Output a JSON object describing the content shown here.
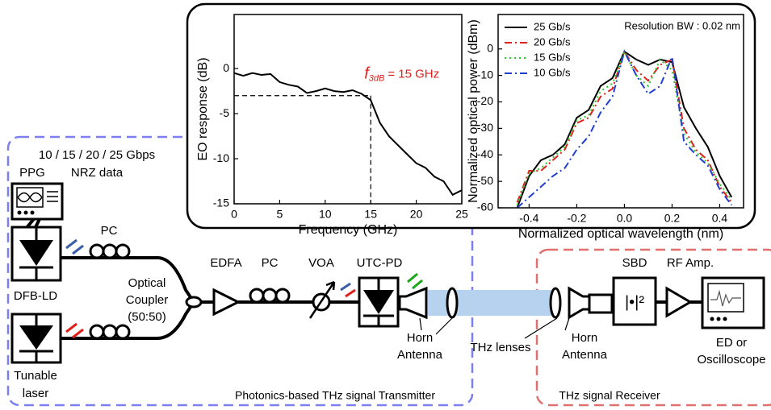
{
  "chart_data": [
    {
      "type": "line",
      "x_label": "Frequency (GHz)",
      "y_label": "EO response (dB)",
      "x": [
        0,
        1,
        2,
        3,
        4,
        5,
        6,
        7,
        8,
        9,
        10,
        11,
        12,
        13,
        14,
        15,
        16,
        17,
        18,
        19,
        20,
        21,
        22,
        23,
        24,
        25
      ],
      "values": [
        -0.5,
        -0.8,
        -0.5,
        -0.7,
        -0.6,
        -1.5,
        -1.8,
        -2,
        -2.7,
        -2.5,
        -2.2,
        -2.5,
        -2.6,
        -2.4,
        -2.8,
        -3.5,
        -6,
        -7.5,
        -8.5,
        -9.5,
        -10.5,
        -11,
        -12,
        -12.5,
        -14,
        -13.5
      ],
      "color": "#000000",
      "xlim": [
        0,
        25
      ],
      "xticks": [
        0,
        5,
        10,
        15,
        20,
        25
      ],
      "ylim": [
        -15,
        6
      ],
      "yticks": [
        0,
        -5,
        -10,
        -15
      ],
      "annotation": {
        "symbol": "f",
        "subscript": "3dB",
        "text": "= 15 GHz",
        "color": "#e0201b"
      },
      "reference_lines": {
        "x": 15,
        "y": -3
      }
    },
    {
      "type": "line",
      "x_label": "Normalized optical wavelength (nm)",
      "y_label": "Normalized optical power (dBm)",
      "x": [
        -0.45,
        -0.4,
        -0.35,
        -0.3,
        -0.25,
        -0.2,
        -0.15,
        -0.1,
        -0.05,
        0,
        0.05,
        0.1,
        0.15,
        0.2,
        0.25,
        0.3,
        0.35,
        0.4,
        0.45
      ],
      "series": [
        {
          "name": "25 Gb/s",
          "color": "#000000",
          "dash": "solid",
          "values": [
            -60,
            -48,
            -42,
            -40,
            -36,
            -26,
            -23,
            -14,
            -11,
            -1,
            -4,
            -6,
            -4,
            -5,
            -22,
            -30,
            -37,
            -48,
            -56
          ]
        },
        {
          "name": "20 Gb/s",
          "color": "#e0201b",
          "dash": "dashdot",
          "values": [
            -58,
            -46,
            -46,
            -42,
            -38,
            -28,
            -26,
            -18,
            -15,
            -1,
            -8,
            -12,
            -6,
            -4,
            -30,
            -38,
            -42,
            -52,
            -58
          ]
        },
        {
          "name": "15 Gb/s",
          "color": "#22cc22",
          "dash": "dot",
          "values": [
            -59,
            -47,
            -45,
            -41,
            -37,
            -27,
            -25,
            -16,
            -13,
            -1,
            -10,
            -14,
            -4,
            -8,
            -32,
            -39,
            -43,
            -51,
            -57
          ]
        },
        {
          "name": "10 Gb/s",
          "color": "#1f3fd0",
          "dash": "dashdot",
          "values": [
            -60,
            -56,
            -52,
            -48,
            -45,
            -38,
            -33,
            -24,
            -18,
            -1,
            -10,
            -17,
            -14,
            -3,
            -35,
            -40,
            -44,
            -53,
            -59
          ]
        }
      ],
      "legend": "upper left",
      "annotation_text": "Resolution BW : 0.02 nm",
      "xlim": [
        -0.53,
        0.5
      ],
      "xticks": [
        -0.4,
        -0.2,
        {
          "value": 0,
          "label": "0.0"
        },
        0.2,
        0.4
      ],
      "ylim": [
        -60,
        13
      ],
      "yticks": [
        0,
        -10,
        -20,
        -30,
        -40,
        -50,
        -60
      ]
    }
  ],
  "diagram": {
    "data_rate": "10 / 15 / 20 / 25 Gbps",
    "data_format": "NRZ data",
    "ppg": "PPG",
    "pc_top": "PC",
    "dfb_ld": "DFB-LD",
    "tunable_laser": [
      "Tunable",
      "laser"
    ],
    "coupler": [
      "Optical",
      "Coupler",
      "(50:50)"
    ],
    "edfa": "EDFA",
    "pc": "PC",
    "voa": "VOA",
    "utc_pd": "UTC-PD",
    "horn_tx": [
      "Horn",
      "Antenna"
    ],
    "lenses": "THz lenses",
    "horn_rx": [
      "Horn",
      "Antenna"
    ],
    "sbd": "SBD",
    "rf_amp": "RF Amp.",
    "ed": [
      "ED or",
      "Oscilloscope"
    ],
    "transmitter": "Photonics-based THz signal Transmitter",
    "receiver": "THz signal Receiver"
  }
}
